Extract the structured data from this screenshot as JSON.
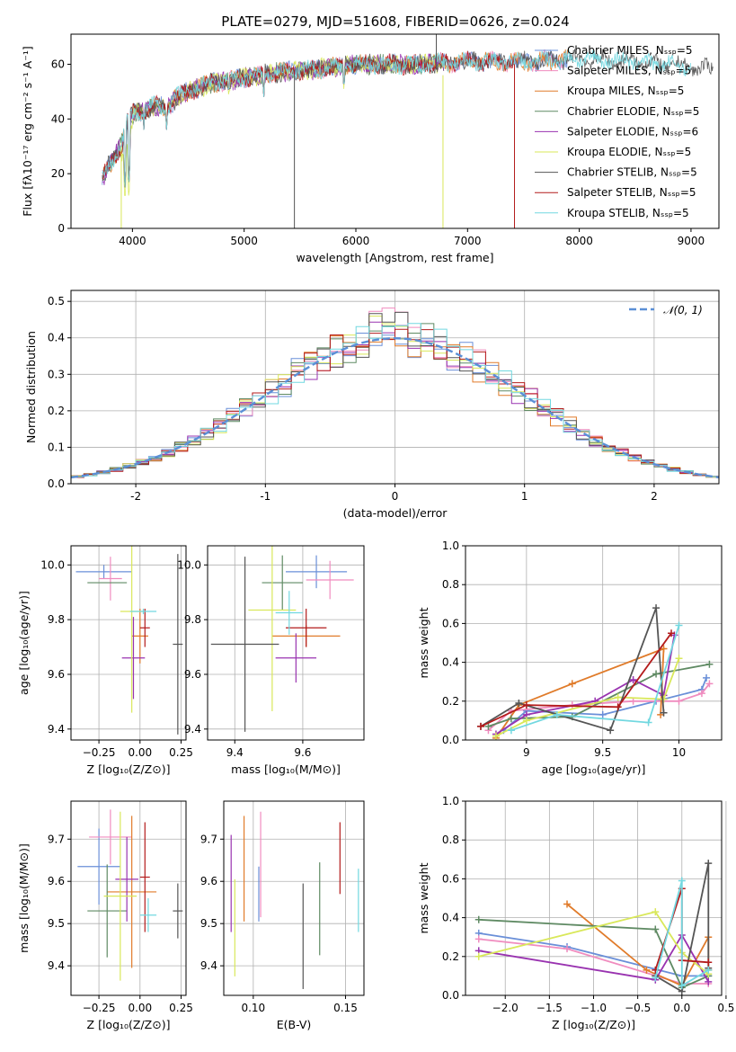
{
  "figure_title": "PLATE=0279, MJD=51608, FIBERID=0626, z=0.024",
  "colors": {
    "Chabrier MILES": "#6a8fd8",
    "Salpeter MILES": "#f08cbf",
    "Kroupa MILES": "#e07b2a",
    "Chabrier ELODIE": "#5f8a63",
    "Salpeter ELODIE": "#9933b0",
    "Kroupa ELODIE": "#d9e85a",
    "Chabrier STELIB": "#555555",
    "Salpeter STELIB": "#b31b1b",
    "Kroupa STELIB": "#72d8e0"
  },
  "chart_data": [
    {
      "type": "line",
      "title": "PLATE=0279, MJD=51608, FIBERID=0626, z=0.024",
      "xlabel": "wavelength [Angstrom, rest frame]",
      "ylabel": "Flux [fλ10⁻¹⁷ erg cm⁻² s⁻¹ A⁻¹]",
      "xlim": [
        3450,
        9250
      ],
      "ylim": [
        0,
        71
      ],
      "xticks": [
        4000,
        5000,
        6000,
        7000,
        8000,
        9000
      ],
      "yticks": [
        0,
        20,
        40,
        60
      ],
      "grid": false,
      "legend_position": "top-right",
      "legend": [
        "Chabrier MILES, Nₛₛₚ=5",
        "Salpeter MILES, Nₛₛₚ=5",
        "Kroupa MILES, Nₛₛₚ=5",
        "Chabrier ELODIE, Nₛₛₚ=5",
        "Salpeter ELODIE, Nₛₛₚ=6",
        "Kroupa ELODIE, Nₛₛₚ=5",
        "Chabrier STELIB, Nₛₛₚ=5",
        "Salpeter STELIB, Nₛₛₚ=5",
        "Kroupa STELIB, Nₛₛₚ=5"
      ],
      "model_ranges": [
        {
          "model": "Chabrier MILES",
          "x": [
            3730,
            7900
          ]
        },
        {
          "model": "Salpeter MILES",
          "x": [
            3730,
            7900
          ]
        },
        {
          "model": "Kroupa MILES",
          "x": [
            3730,
            7900
          ]
        },
        {
          "model": "Chabrier ELODIE",
          "x": [
            3730,
            6790
          ]
        },
        {
          "model": "Salpeter ELODIE",
          "x": [
            3730,
            6790
          ]
        },
        {
          "model": "Kroupa ELODIE",
          "x": [
            3900,
            6790
          ]
        },
        {
          "model": "Chabrier STELIB",
          "x": [
            3730,
            9200
          ]
        },
        {
          "model": "Salpeter STELIB",
          "x": [
            3730,
            7420
          ]
        },
        {
          "model": "Kroupa STELIB",
          "x": [
            3730,
            9000
          ]
        }
      ],
      "continuum": {
        "x": [
          3730,
          3800,
          3900,
          3950,
          4000,
          4100,
          4200,
          4300,
          4400,
          4500,
          4700,
          5000,
          5300,
          5600,
          6000,
          6500,
          7000,
          7500,
          8000,
          8500,
          9000,
          9200
        ],
        "y": [
          18,
          24,
          30,
          38,
          42,
          43,
          45,
          44,
          48,
          50,
          53,
          55,
          57,
          58,
          60,
          60,
          61,
          61,
          62,
          61,
          59,
          58
        ]
      },
      "sharp_features": [
        {
          "x": 3933,
          "y": 14
        },
        {
          "x": 3968,
          "y": 15
        },
        {
          "x": 4102,
          "y": 36
        },
        {
          "x": 4305,
          "y": 35
        },
        {
          "x": 4861,
          "y": 48
        },
        {
          "x": 5175,
          "y": 47
        },
        {
          "x": 5893,
          "y": 50
        },
        {
          "x": 6563,
          "y": 56
        }
      ],
      "spikes": [
        {
          "x": 5450,
          "y_from": 56,
          "y_to": 0,
          "model": "Chabrier STELIB"
        },
        {
          "x": 6780,
          "y_from": 56,
          "y_to": 0,
          "model": "Kroupa ELODIE"
        },
        {
          "x": 6720,
          "y_from": 58,
          "y_to": 71,
          "model": "Chabrier STELIB"
        },
        {
          "x": 7420,
          "y_from": 60,
          "y_to": 0,
          "model": "Salpeter STELIB"
        },
        {
          "x": 3900,
          "y_from": 30,
          "y_to": 0,
          "model": "Kroupa ELODIE"
        }
      ]
    },
    {
      "type": "histogram",
      "xlabel": "(data-model)/error",
      "ylabel": "Normed distribution",
      "xlim": [
        -2.5,
        2.5
      ],
      "ylim": [
        0,
        0.53
      ],
      "xticks": [
        -2,
        -1,
        0,
        1,
        2
      ],
      "yticks": [
        0.0,
        0.1,
        0.2,
        0.3,
        0.4,
        0.5
      ],
      "grid": true,
      "legend_position": "top-right",
      "gaussian": {
        "label": "𝒩(0, 1)",
        "mu": 0,
        "sigma": 1,
        "color": "#5b8fd6"
      },
      "bin_width": 0.1,
      "bin_start": -2.5,
      "series_seed_order": [
        "Chabrier MILES",
        "Salpeter MILES",
        "Kroupa MILES",
        "Chabrier ELODIE",
        "Salpeter ELODIE",
        "Kroupa ELODIE",
        "Chabrier STELIB",
        "Salpeter STELIB",
        "Kroupa STELIB"
      ],
      "peak_values": [
        0.42,
        0.5,
        0.41,
        0.44,
        0.45,
        0.47,
        0.48,
        0.43,
        0.44
      ]
    },
    {
      "type": "errorbar",
      "xlabel": "Z [log₁₀(Z/Z⊙)]",
      "ylabel": "age  [log₁₀(age/yr)]",
      "xlim": [
        -0.42,
        0.28
      ],
      "ylim": [
        9.36,
        10.07
      ],
      "xticks": [
        -0.25,
        0.0,
        0.25
      ],
      "xticklabels": [
        "−0.25",
        "0.00",
        "0.25"
      ],
      "yticks": [
        9.4,
        9.6,
        9.8,
        10.0
      ],
      "grid": true,
      "points": [
        {
          "model": "Chabrier MILES",
          "x": -0.22,
          "xerr": 0.17,
          "y": 9.975,
          "yerr": 0.025
        },
        {
          "model": "Salpeter MILES",
          "x": -0.18,
          "xerr": 0.07,
          "y": 9.95,
          "yerr": 0.08
        },
        {
          "model": "Kroupa MILES",
          "x": 0.0,
          "xerr": 0.05,
          "y": 9.74,
          "yerr": 0.1
        },
        {
          "model": "Chabrier ELODIE",
          "x": -0.2,
          "xerr": 0.12,
          "y": 9.935,
          "yerr": 0.0
        },
        {
          "model": "Salpeter ELODIE",
          "x": -0.04,
          "xerr": 0.07,
          "y": 9.66,
          "yerr": 0.15
        },
        {
          "model": "Kroupa ELODIE",
          "x": -0.05,
          "xerr": 0.07,
          "y": 9.83,
          "yerr": 0.37
        },
        {
          "model": "Chabrier STELIB",
          "x": 0.23,
          "xerr": 0.03,
          "y": 9.71,
          "yerr": 0.33
        },
        {
          "model": "Salpeter STELIB",
          "x": 0.03,
          "xerr": 0.03,
          "y": 9.77,
          "yerr": 0.07
        },
        {
          "model": "Kroupa STELIB",
          "x": 0.02,
          "xerr": 0.08,
          "y": 9.83,
          "yerr": 0.01
        }
      ]
    },
    {
      "type": "errorbar",
      "xlabel": "mass [log₁₀(M/M⊙)]",
      "ylabel": "",
      "xlim": [
        9.32,
        9.78
      ],
      "ylim": [
        9.36,
        10.07
      ],
      "xticks": [
        9.4,
        9.6
      ],
      "yticks": [
        9.4,
        9.6,
        9.8,
        10.0
      ],
      "grid": true,
      "points": [
        {
          "model": "Chabrier MILES",
          "x": 9.64,
          "xerr": 0.09,
          "y": 9.975,
          "yerr": 0.06
        },
        {
          "model": "Salpeter MILES",
          "x": 9.68,
          "xerr": 0.07,
          "y": 9.945,
          "yerr": 0.07
        },
        {
          "model": "Kroupa MILES",
          "x": 9.61,
          "xerr": 0.1,
          "y": 9.74,
          "yerr": 0.04
        },
        {
          "model": "Chabrier ELODIE",
          "x": 9.54,
          "xerr": 0.06,
          "y": 9.935,
          "yerr": 0.1
        },
        {
          "model": "Salpeter ELODIE",
          "x": 9.58,
          "xerr": 0.06,
          "y": 9.66,
          "yerr": 0.09
        },
        {
          "model": "Kroupa ELODIE",
          "x": 9.51,
          "xerr": 0.07,
          "y": 9.835,
          "yerr": 0.37
        },
        {
          "model": "Chabrier STELIB",
          "x": 9.43,
          "xerr": 0.1,
          "y": 9.71,
          "yerr": 0.32
        },
        {
          "model": "Salpeter STELIB",
          "x": 9.61,
          "xerr": 0.06,
          "y": 9.77,
          "yerr": 0.07
        },
        {
          "model": "Kroupa STELIB",
          "x": 9.56,
          "xerr": 0.04,
          "y": 9.825,
          "yerr": 0.08
        }
      ]
    },
    {
      "type": "line",
      "xlabel": "age  [log₁₀(age/yr)]",
      "ylabel": "mass weight",
      "xlim": [
        8.6,
        10.28
      ],
      "ylim": [
        0.0,
        1.0
      ],
      "xticks": [
        9.0,
        9.5,
        10.0
      ],
      "yticks": [
        0.0,
        0.2,
        0.4,
        0.6,
        0.8,
        1.0
      ],
      "grid": true,
      "series": [
        {
          "model": "Chabrier MILES",
          "x": [
            8.85,
            9.0,
            9.5,
            9.85,
            10.15,
            10.18
          ],
          "y": [
            0.05,
            0.15,
            0.13,
            0.2,
            0.26,
            0.32
          ]
        },
        {
          "model": "Salpeter MILES",
          "x": [
            8.75,
            8.9,
            9.3,
            9.7,
            10.0,
            10.15,
            10.2
          ],
          "y": [
            0.05,
            0.15,
            0.18,
            0.2,
            0.2,
            0.24,
            0.29
          ]
        },
        {
          "model": "Kroupa MILES",
          "x": [
            8.8,
            8.95,
            9.3,
            9.9,
            9.88
          ],
          "y": [
            0.01,
            0.18,
            0.29,
            0.47,
            0.13
          ]
        },
        {
          "model": "Chabrier ELODIE",
          "x": [
            8.75,
            8.9,
            9.3,
            9.85,
            10.2
          ],
          "y": [
            0.07,
            0.11,
            0.12,
            0.34,
            0.39
          ]
        },
        {
          "model": "Salpeter ELODIE",
          "x": [
            8.8,
            9.0,
            9.45,
            9.7,
            9.9,
            9.97
          ],
          "y": [
            0.03,
            0.13,
            0.2,
            0.31,
            0.23,
            0.54
          ]
        },
        {
          "model": "Kroupa ELODIE",
          "x": [
            8.8,
            9.0,
            9.6,
            9.9,
            10.0
          ],
          "y": [
            0.02,
            0.1,
            0.22,
            0.21,
            0.42
          ]
        },
        {
          "model": "Chabrier STELIB",
          "x": [
            8.7,
            8.95,
            9.55,
            9.85,
            9.9
          ],
          "y": [
            0.07,
            0.19,
            0.05,
            0.68,
            0.14
          ]
        },
        {
          "model": "Salpeter STELIB",
          "x": [
            8.7,
            9.0,
            9.6,
            9.95
          ],
          "y": [
            0.07,
            0.18,
            0.17,
            0.55
          ]
        },
        {
          "model": "Kroupa STELIB",
          "x": [
            8.9,
            9.2,
            9.8,
            10.0
          ],
          "y": [
            0.05,
            0.13,
            0.09,
            0.59
          ]
        }
      ]
    },
    {
      "type": "errorbar",
      "xlabel": "Z [log₁₀(Z/Z⊙)]",
      "ylabel": "mass [log₁₀(M/M⊙)]",
      "xlim": [
        -0.42,
        0.28
      ],
      "ylim": [
        9.33,
        9.79
      ],
      "xticks": [
        -0.25,
        0.0,
        0.25
      ],
      "xticklabels": [
        "−0.25",
        "0.00",
        "0.25"
      ],
      "yticks": [
        9.4,
        9.5,
        9.6,
        9.7
      ],
      "grid": true,
      "points": [
        {
          "model": "Chabrier MILES",
          "x": -0.25,
          "xerr": 0.13,
          "y": 9.635,
          "yerr": 0.09
        },
        {
          "model": "Salpeter MILES",
          "x": -0.18,
          "xerr": 0.13,
          "y": 9.705,
          "yerr": 0.065
        },
        {
          "model": "Kroupa MILES",
          "x": -0.05,
          "xerr": 0.15,
          "y": 9.575,
          "yerr": 0.18
        },
        {
          "model": "Chabrier ELODIE",
          "x": -0.2,
          "xerr": 0.12,
          "y": 9.53,
          "yerr": 0.11
        },
        {
          "model": "Salpeter ELODIE",
          "x": -0.08,
          "xerr": 0.07,
          "y": 9.605,
          "yerr": 0.1
        },
        {
          "model": "Kroupa ELODIE",
          "x": -0.12,
          "xerr": 0.1,
          "y": 9.565,
          "yerr": 0.2
        },
        {
          "model": "Chabrier STELIB",
          "x": 0.23,
          "xerr": 0.03,
          "y": 9.53,
          "yerr": 0.065
        },
        {
          "model": "Salpeter STELIB",
          "x": 0.03,
          "xerr": 0.03,
          "y": 9.61,
          "yerr": 0.13
        },
        {
          "model": "Kroupa STELIB",
          "x": 0.05,
          "xerr": 0.05,
          "y": 9.52,
          "yerr": 0.04
        }
      ]
    },
    {
      "type": "errorbar",
      "xlabel": "E(B-V)",
      "ylabel": "",
      "xlim": [
        0.084,
        0.16
      ],
      "ylim": [
        9.33,
        9.79
      ],
      "xticks": [
        0.1,
        0.15
      ],
      "xticklabels": [
        "0.10",
        "0.15"
      ],
      "yticks": [
        9.4,
        9.5,
        9.6,
        9.7
      ],
      "grid": true,
      "points": [
        {
          "model": "Salpeter ELODIE",
          "x": 0.088,
          "y": 9.595,
          "yerr": 0.115
        },
        {
          "model": "Kroupa ELODIE",
          "x": 0.09,
          "y": 9.49,
          "yerr": 0.115
        },
        {
          "model": "Kroupa MILES",
          "x": 0.095,
          "y": 9.63,
          "yerr": 0.125
        },
        {
          "model": "Chabrier MILES",
          "x": 0.103,
          "y": 9.57,
          "yerr": 0.065
        },
        {
          "model": "Salpeter MILES",
          "x": 0.104,
          "y": 9.64,
          "yerr": 0.125
        },
        {
          "model": "Chabrier STELIB",
          "x": 0.127,
          "y": 9.47,
          "yerr": 0.125
        },
        {
          "model": "Chabrier ELODIE",
          "x": 0.136,
          "y": 9.535,
          "yerr": 0.11
        },
        {
          "model": "Salpeter STELIB",
          "x": 0.147,
          "y": 9.655,
          "yerr": 0.085
        },
        {
          "model": "Kroupa STELIB",
          "x": 0.157,
          "y": 9.555,
          "yerr": 0.075
        }
      ]
    },
    {
      "type": "line",
      "xlabel": "Z [log₁₀(Z/Z⊙)]",
      "ylabel": "mass weight",
      "xlim": [
        -2.45,
        0.45
      ],
      "ylim": [
        0.0,
        1.0
      ],
      "xticks": [
        -2.0,
        -1.5,
        -1.0,
        -0.5,
        0.0,
        0.5
      ],
      "xticklabels": [
        "−2.0",
        "−1.5",
        "−1.0",
        "−0.5",
        "0.0",
        "0.5"
      ],
      "yticks": [
        0.0,
        0.2,
        0.4,
        0.6,
        0.8,
        1.0
      ],
      "grid": true,
      "series": [
        {
          "model": "Chabrier MILES",
          "x": [
            -2.3,
            -1.3,
            0.0,
            0.3
          ],
          "y": [
            0.32,
            0.25,
            0.1,
            0.1
          ]
        },
        {
          "model": "Salpeter MILES",
          "x": [
            -2.3,
            -1.3,
            0.0,
            0.3
          ],
          "y": [
            0.29,
            0.24,
            0.06,
            0.06
          ]
        },
        {
          "model": "Kroupa MILES",
          "x": [
            -1.3,
            -0.4,
            0.0,
            0.3,
            0.3
          ],
          "y": [
            0.47,
            0.13,
            0.05,
            0.3,
            0.13
          ]
        },
        {
          "model": "Chabrier ELODIE",
          "x": [
            -2.3,
            -0.3,
            0.0,
            0.3
          ],
          "y": [
            0.39,
            0.34,
            0.04,
            0.1
          ]
        },
        {
          "model": "Salpeter ELODIE",
          "x": [
            -2.3,
            -0.3,
            0.0,
            0.3
          ],
          "y": [
            0.23,
            0.08,
            0.31,
            0.07
          ]
        },
        {
          "model": "Kroupa ELODIE",
          "x": [
            -2.3,
            -0.3,
            0.0,
            0.3
          ],
          "y": [
            0.2,
            0.43,
            0.22,
            0.11
          ]
        },
        {
          "model": "Chabrier STELIB",
          "x": [
            -0.3,
            0.0,
            0.3,
            0.3
          ],
          "y": [
            0.1,
            0.02,
            0.68,
            0.14
          ]
        },
        {
          "model": "Salpeter STELIB",
          "x": [
            -0.3,
            0.0,
            0.0,
            0.3
          ],
          "y": [
            0.13,
            0.55,
            0.18,
            0.17
          ]
        },
        {
          "model": "Kroupa STELIB",
          "x": [
            -0.3,
            0.0,
            0.0,
            0.3
          ],
          "y": [
            0.09,
            0.59,
            0.05,
            0.13
          ]
        }
      ]
    }
  ]
}
